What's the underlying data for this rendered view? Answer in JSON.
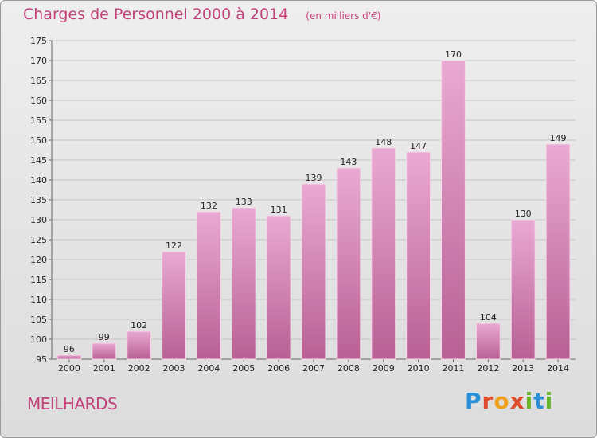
{
  "header": {
    "title": "Charges de Personnel 2000 à 2014",
    "unit": "(en milliers d'€)"
  },
  "commune": "MEILHARDS",
  "logo": {
    "text": "Proxiti",
    "letters": [
      "P",
      "r",
      "o",
      "x",
      "i",
      "t",
      "i"
    ],
    "colors": [
      "#2a8fd6",
      "#e04c2b",
      "#f0a01c",
      "#e04c2b",
      "#6ab42d",
      "#2a8fd6",
      "#6ab42d"
    ]
  },
  "colors": {
    "title": "#c2427a",
    "bar_top": "#e9a9d2",
    "bar_bottom": "#b86094"
  },
  "chart_data": {
    "type": "bar",
    "title": "Charges de Personnel 2000 à 2014",
    "subtitle": "(en milliers d'€)",
    "xlabel": "",
    "ylabel": "",
    "categories": [
      "2000",
      "2001",
      "2002",
      "2003",
      "2004",
      "2005",
      "2006",
      "2007",
      "2008",
      "2009",
      "2010",
      "2011",
      "2012",
      "2013",
      "2014"
    ],
    "values": [
      96,
      99,
      102,
      122,
      132,
      133,
      131,
      139,
      143,
      148,
      147,
      170,
      104,
      130,
      149
    ],
    "ylim": [
      95,
      175
    ],
    "yticks": [
      95,
      100,
      105,
      110,
      115,
      120,
      125,
      130,
      135,
      140,
      145,
      150,
      155,
      160,
      165,
      170,
      175
    ],
    "grid": true
  }
}
